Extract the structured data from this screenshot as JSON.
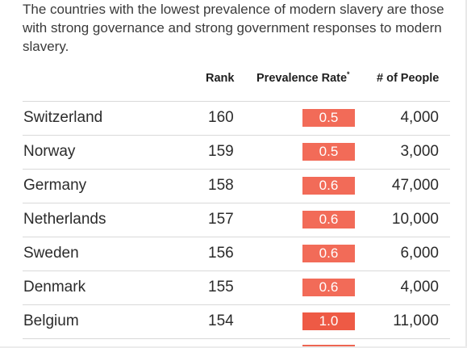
{
  "intro_text": "The countries with the lowest prevalence of modern slavery are those with strong governance and strong government responses to modern slavery.",
  "table": {
    "headers": {
      "rank": "Rank",
      "prevalence": "Prevalence Rate",
      "prevalence_mark": "*",
      "people": "# of People"
    },
    "rows": [
      {
        "country": "Switzerland",
        "rank": "160",
        "rate": "0.5",
        "people": "4,000"
      },
      {
        "country": "Norway",
        "rank": "159",
        "rate": "0.5",
        "people": "3,000"
      },
      {
        "country": "Germany",
        "rank": "158",
        "rate": "0.6",
        "people": "47,000"
      },
      {
        "country": "Netherlands",
        "rank": "157",
        "rate": "0.6",
        "people": "10,000"
      },
      {
        "country": "Sweden",
        "rank": "156",
        "rate": "0.6",
        "people": "6,000"
      },
      {
        "country": "Denmark",
        "rank": "155",
        "rate": "0.6",
        "people": "4,000"
      },
      {
        "country": "Belgium",
        "rank": "154",
        "rate": "1.0",
        "people": "11,000"
      }
    ]
  },
  "colors": {
    "rate_low": "#f26b58",
    "rate_high": "#ee5a45"
  }
}
